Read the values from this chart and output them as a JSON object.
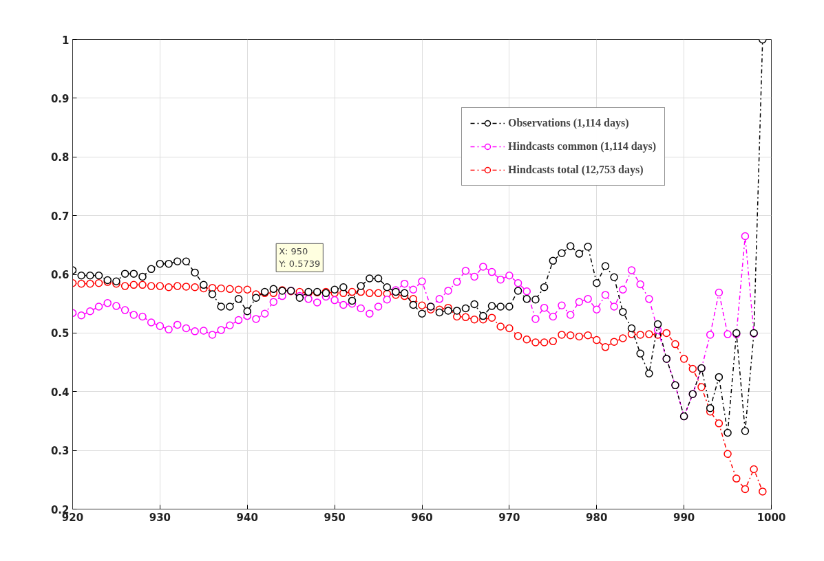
{
  "chart_data": {
    "type": "line",
    "xlim": [
      920,
      1000
    ],
    "ylim": [
      0.2,
      1
    ],
    "xticks": [
      920,
      930,
      940,
      950,
      960,
      970,
      980,
      990,
      1000
    ],
    "yticks": [
      0.2,
      0.3,
      0.4,
      0.5,
      0.6,
      0.7,
      0.8,
      0.9,
      1
    ],
    "x": [
      920,
      921,
      922,
      923,
      924,
      925,
      926,
      927,
      928,
      929,
      930,
      931,
      932,
      933,
      934,
      935,
      936,
      937,
      938,
      939,
      940,
      941,
      942,
      943,
      944,
      945,
      946,
      947,
      948,
      949,
      950,
      951,
      952,
      953,
      954,
      955,
      956,
      957,
      958,
      959,
      960,
      961,
      962,
      963,
      964,
      965,
      966,
      967,
      968,
      969,
      970,
      971,
      972,
      973,
      974,
      975,
      976,
      977,
      978,
      979,
      980,
      981,
      982,
      983,
      984,
      985,
      986,
      987,
      988,
      989,
      990,
      991,
      992,
      993,
      994,
      995,
      996,
      997,
      998,
      999
    ],
    "series": [
      {
        "name": "Observations (1,114 days)",
        "color": "#000000",
        "values": [
          0.607,
          0.598,
          0.598,
          0.598,
          0.59,
          0.588,
          0.601,
          0.601,
          0.596,
          0.609,
          0.618,
          0.618,
          0.622,
          0.622,
          0.603,
          0.582,
          0.566,
          0.545,
          0.545,
          0.558,
          0.537,
          0.56,
          0.57,
          0.575,
          0.572,
          0.572,
          0.56,
          0.57,
          0.57,
          0.568,
          0.5739,
          0.578,
          0.555,
          0.58,
          0.593,
          0.593,
          0.578,
          0.57,
          0.568,
          0.548,
          0.533,
          0.545,
          0.535,
          0.538,
          0.538,
          0.542,
          0.549,
          0.529,
          0.546,
          0.545,
          0.545,
          0.572,
          0.558,
          0.557,
          0.578,
          0.623,
          0.636,
          0.648,
          0.635,
          0.647,
          0.585,
          0.614,
          0.595,
          0.536,
          0.508,
          0.465,
          0.431,
          0.515,
          0.456,
          0.411,
          0.358,
          0.396,
          0.44,
          0.372,
          0.425,
          0.33,
          0.5,
          0.333,
          0.5,
          1.0
        ]
      },
      {
        "name": "Hindcasts common (1,114 days)",
        "color": "#ff00ff",
        "values": [
          0.534,
          0.53,
          0.537,
          0.545,
          0.551,
          0.546,
          0.539,
          0.531,
          0.528,
          0.518,
          0.512,
          0.506,
          0.514,
          0.508,
          0.503,
          0.504,
          0.497,
          0.505,
          0.513,
          0.522,
          0.529,
          0.524,
          0.533,
          0.553,
          0.563,
          0.572,
          0.563,
          0.558,
          0.552,
          0.562,
          0.556,
          0.548,
          0.55,
          0.542,
          0.533,
          0.545,
          0.557,
          0.573,
          0.584,
          0.574,
          0.588,
          0.545,
          0.558,
          0.572,
          0.587,
          0.606,
          0.596,
          0.613,
          0.604,
          0.591,
          0.598,
          0.585,
          0.571,
          0.524,
          0.543,
          0.528,
          0.547,
          0.531,
          0.553,
          0.558,
          0.54,
          0.565,
          0.545,
          0.574,
          0.607,
          0.583,
          0.558,
          0.505,
          0.456,
          0.411,
          0.358,
          0.396,
          0.44,
          0.497,
          0.569,
          0.498,
          0.498,
          0.665,
          0.499,
          null
        ]
      },
      {
        "name": "Hindcasts total (12,753 days)",
        "color": "#ff0000",
        "values": [
          0.585,
          0.584,
          0.584,
          0.585,
          0.587,
          0.584,
          0.58,
          0.582,
          0.582,
          0.58,
          0.58,
          0.578,
          0.58,
          0.579,
          0.578,
          0.576,
          0.577,
          0.576,
          0.575,
          0.574,
          0.574,
          0.566,
          0.568,
          0.568,
          0.573,
          0.571,
          0.57,
          0.568,
          0.569,
          0.57,
          0.568,
          0.568,
          0.57,
          0.57,
          0.568,
          0.568,
          0.567,
          0.565,
          0.563,
          0.558,
          0.547,
          0.54,
          0.54,
          0.543,
          0.528,
          0.527,
          0.523,
          0.523,
          0.526,
          0.511,
          0.508,
          0.495,
          0.489,
          0.484,
          0.484,
          0.486,
          0.497,
          0.496,
          0.494,
          0.496,
          0.488,
          0.476,
          0.485,
          0.491,
          0.498,
          0.497,
          0.498,
          0.497,
          0.5,
          0.481,
          0.456,
          0.439,
          0.408,
          0.366,
          0.346,
          0.294,
          0.252,
          0.234,
          0.268,
          0.23
        ]
      }
    ],
    "annotations": [
      {
        "text": "X: 950\nY: 0.5739",
        "x": 950,
        "y": 0.5739
      }
    ],
    "grid": true,
    "legend": "top right",
    "marker": "circle",
    "line_style": "dashdot"
  }
}
